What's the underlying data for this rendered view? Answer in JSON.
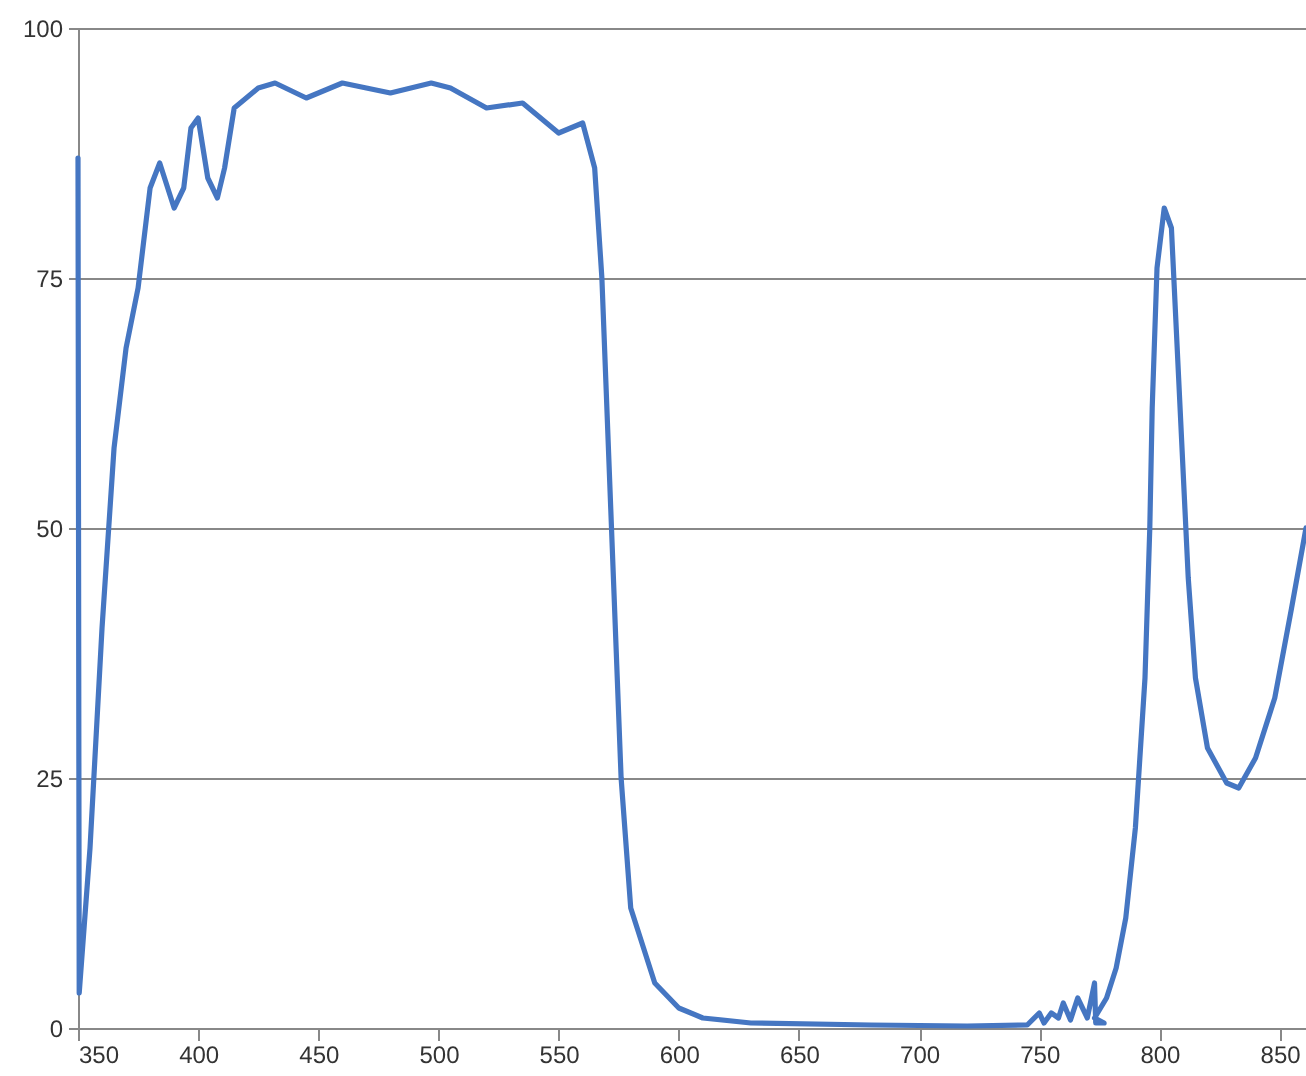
{
  "chart_data": {
    "type": "line",
    "x": [
      350,
      350.5,
      355,
      360,
      365,
      370,
      375,
      378,
      380,
      384,
      390,
      394,
      397,
      400,
      404,
      408,
      411,
      415,
      425,
      432,
      445,
      460,
      480,
      497,
      505,
      520,
      535,
      550,
      560,
      565,
      568,
      572,
      576,
      580,
      590,
      600,
      610,
      630,
      680,
      720,
      745,
      750,
      752,
      755,
      758,
      760,
      763,
      766,
      770,
      773,
      773.5,
      777,
      773,
      778,
      782,
      786,
      790,
      794,
      796,
      797,
      799,
      802,
      805,
      808,
      812,
      815,
      820,
      828,
      833,
      840,
      848,
      855,
      861
    ],
    "series": [
      {
        "color": "#4576c2",
        "values": [
          87,
          3.5,
          18,
          40,
          58,
          68,
          74,
          80,
          84,
          86.5,
          82,
          84,
          90,
          91,
          85,
          83,
          86,
          92,
          94,
          94.5,
          93,
          94.5,
          93.5,
          94.5,
          94,
          92,
          92.5,
          89.5,
          90.5,
          86,
          75,
          50,
          25,
          12,
          4.5,
          2,
          1,
          0.5,
          0.3,
          0.2,
          0.3,
          1.5,
          0.5,
          1.5,
          1,
          2.5,
          0.8,
          3,
          1,
          4.5,
          0.5,
          0.5,
          1,
          3,
          6,
          11,
          20,
          35,
          50,
          62,
          76,
          82,
          80,
          65,
          45,
          35,
          28,
          24.5,
          24,
          27,
          33,
          42,
          50
        ]
      }
    ],
    "xlim": [
      350,
      861
    ],
    "xticks": [
      350,
      400,
      450,
      500,
      550,
      600,
      650,
      700,
      750,
      800,
      850
    ],
    "ylim": [
      0,
      100
    ],
    "yticks": [
      0,
      25,
      50,
      75,
      100
    ],
    "grid": "y",
    "marker": "none",
    "line_style": "solid"
  }
}
